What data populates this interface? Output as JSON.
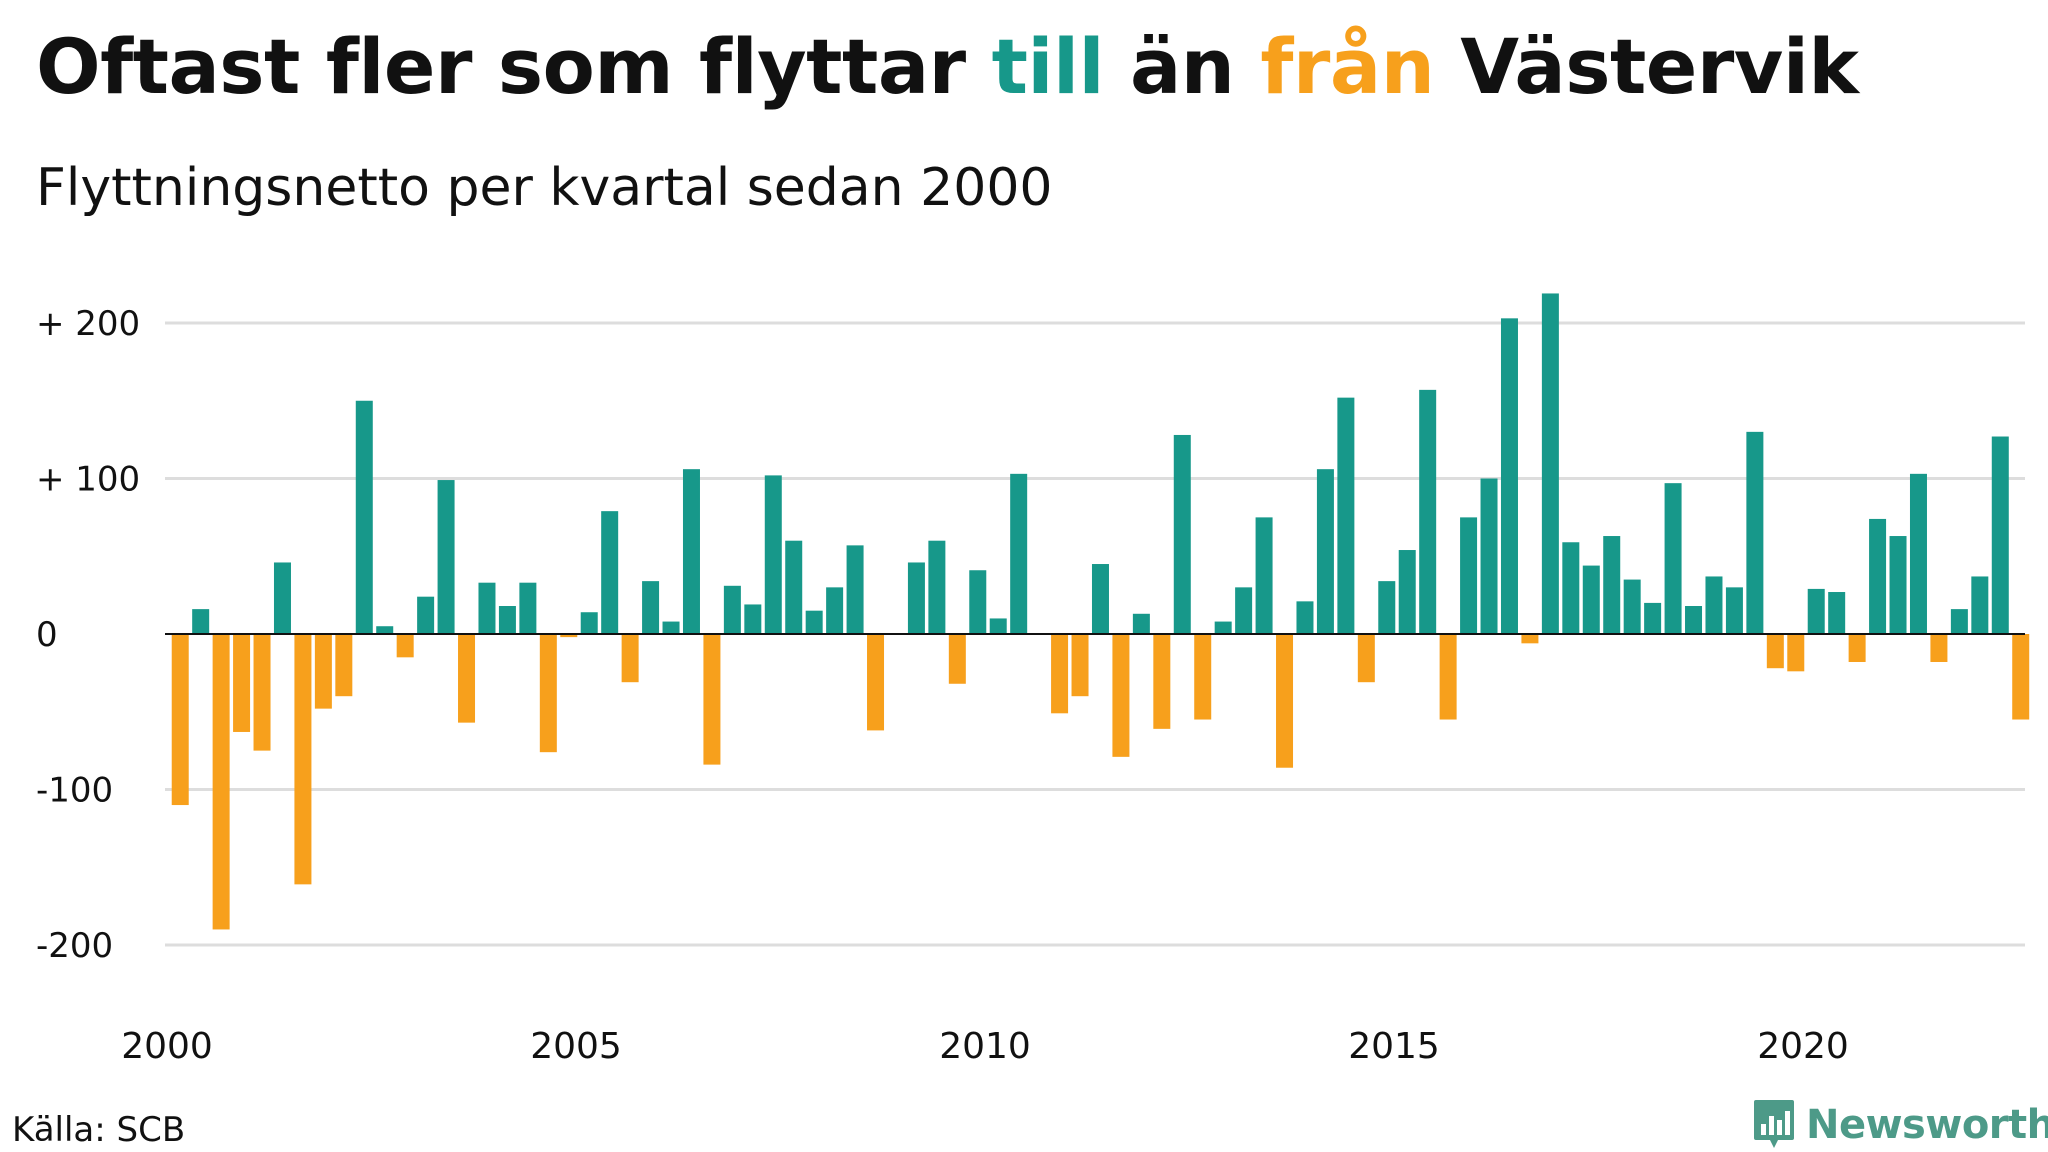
{
  "title": {
    "part1": "Oftast fler som flyttar ",
    "till": "till",
    "part2": " än ",
    "fran": "från",
    "part3": " Västervik"
  },
  "subtitle": "Flyttningsnetto per kvartal sedan 2000",
  "source": "Källa: SCB",
  "brand": "Newsworthy",
  "colors": {
    "positive": "#17988a",
    "negative": "#f7a01c",
    "brand": "#4d9a88",
    "grid": "#dddddd",
    "zero": "#111111"
  },
  "chart_data": {
    "type": "bar",
    "x_start": 2000,
    "period": "quarter",
    "ylim": [
      -230,
      230
    ],
    "yticks": [
      {
        "value": 200,
        "label": "+ 200"
      },
      {
        "value": 100,
        "label": "+ 100"
      },
      {
        "value": 0,
        "label": "0"
      },
      {
        "value": -100,
        "label": "-100"
      },
      {
        "value": -200,
        "label": "-200"
      }
    ],
    "xticks": [
      2000,
      2005,
      2010,
      2015,
      2020
    ],
    "grid": true,
    "values": [
      -110,
      16,
      -190,
      -63,
      -75,
      46,
      -161,
      -48,
      -40,
      150,
      5,
      -15,
      24,
      99,
      -57,
      33,
      18,
      33,
      -76,
      -2,
      14,
      79,
      -31,
      34,
      8,
      106,
      -84,
      31,
      19,
      102,
      60,
      15,
      30,
      57,
      -62,
      0,
      46,
      60,
      -32,
      41,
      10,
      103,
      0,
      -51,
      -40,
      45,
      -79,
      13,
      -61,
      128,
      -55,
      8,
      30,
      75,
      -86,
      21,
      106,
      152,
      -31,
      34,
      54,
      157,
      -55,
      75,
      100,
      203,
      -6,
      219,
      59,
      44,
      63,
      35,
      20,
      97,
      18,
      37,
      30,
      130,
      -22,
      -24,
      29,
      27,
      -18,
      74,
      63,
      103,
      -18,
      16,
      37,
      127,
      -55
    ]
  }
}
